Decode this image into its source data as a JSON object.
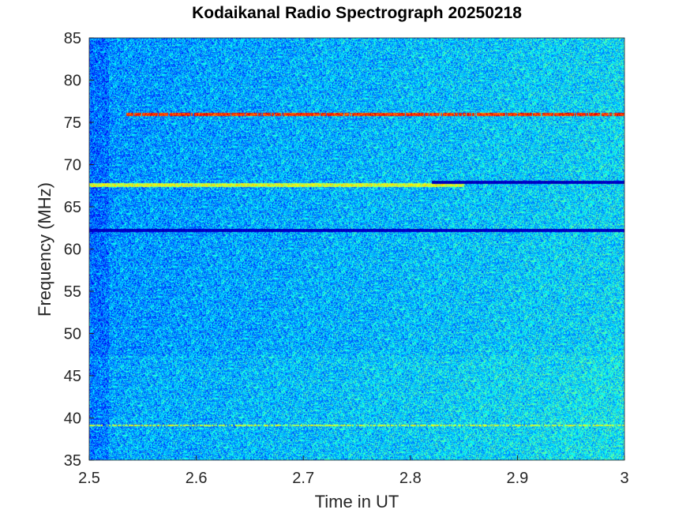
{
  "chart_data": {
    "type": "heatmap",
    "title": "Kodaikanal Radio Spectrograph  20250218",
    "xlabel": "Time in UT",
    "ylabel": "Frequency (MHz)",
    "xlim": [
      2.5,
      3.0
    ],
    "ylim": [
      35,
      85
    ],
    "xticks": [
      2.5,
      2.6,
      2.7,
      2.8,
      2.9,
      3.0
    ],
    "xtick_labels": [
      "2.5",
      "2.6",
      "2.7",
      "2.8",
      "2.9",
      "3"
    ],
    "yticks": [
      35,
      40,
      45,
      50,
      55,
      60,
      65,
      70,
      75,
      80,
      85
    ],
    "ytick_labels": [
      "35",
      "40",
      "45",
      "50",
      "55",
      "60",
      "65",
      "70",
      "75",
      "80",
      "85"
    ],
    "colormap": "jet",
    "background_level": "mid-blue noise, brighter toward later times",
    "features": [
      {
        "kind": "intermittent bright emission line",
        "freq_mhz": 76,
        "t_start": 2.535,
        "t_end": 3.0,
        "level": "high (yellow-red)"
      },
      {
        "kind": "bright line",
        "freq_mhz": 67.6,
        "t_start": 2.5,
        "t_end": 2.85,
        "level": "high (cyan-yellow)"
      },
      {
        "kind": "dark absorption line",
        "freq_mhz": 68,
        "t_start": 2.82,
        "t_end": 3.0,
        "level": "low (dark blue)"
      },
      {
        "kind": "dark absorption line",
        "freq_mhz": 62.3,
        "t_start": 2.5,
        "t_end": 3.0,
        "level": "low (dark blue)"
      },
      {
        "kind": "faint emission line",
        "freq_mhz": 39.2,
        "t_start": 2.5,
        "t_end": 3.0,
        "level": "medium (cyan-yellow)"
      }
    ],
    "grid": false,
    "legend": "none"
  }
}
